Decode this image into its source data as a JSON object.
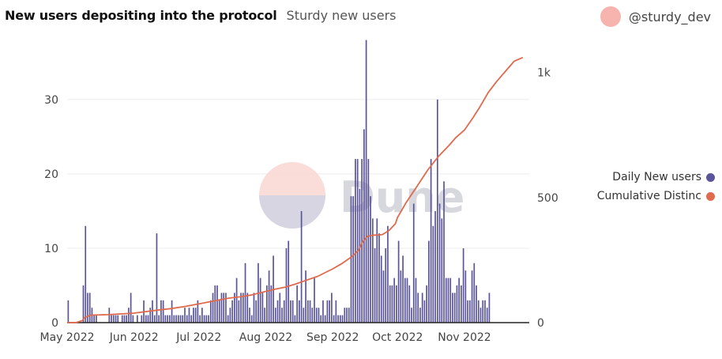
{
  "header": {
    "title": "New users depositing into the protocol",
    "subtitle": "Sturdy new users",
    "author": "@sturdy_dev"
  },
  "watermark": "Dune",
  "colors": {
    "bar": "#5a5599",
    "line": "#df6a4d",
    "avatar": "#f7b3ad",
    "grid": "#ececec"
  },
  "chart_data": {
    "type": "bar",
    "title": "New users depositing into the protocol",
    "subtitle": "Sturdy new users",
    "x": {
      "start": "2022-05-01",
      "end": "2022-12-01",
      "tick_labels": [
        "May 2022",
        "Jun 2022",
        "Jul 2022",
        "Aug 2022",
        "Sep 2022",
        "Oct 2022",
        "Nov 2022"
      ]
    },
    "y_left": {
      "min": 0,
      "max": 37,
      "ticks": [
        0,
        10,
        20,
        30
      ]
    },
    "y_right": {
      "min": 0,
      "max": 1100,
      "ticks": [
        0,
        500,
        1000
      ],
      "tick_labels": [
        "0",
        "500",
        "1k"
      ]
    },
    "legend": {
      "position": "right",
      "items": [
        {
          "label": "Daily New users",
          "color": "#5a5599"
        },
        {
          "label": "Cumulative Distinc",
          "color": "#df6a4d"
        }
      ]
    },
    "series": [
      {
        "name": "Daily New users",
        "type": "bar",
        "axis": "left",
        "values": [
          3,
          0,
          0,
          0,
          0,
          0,
          0,
          5,
          13,
          4,
          4,
          2,
          1,
          1,
          0,
          0,
          0,
          0,
          0,
          2,
          1,
          1,
          1,
          1,
          0,
          1,
          1,
          1,
          2,
          4,
          1,
          0,
          1,
          0,
          1,
          3,
          1,
          1,
          2,
          3,
          1,
          12,
          1,
          3,
          3,
          1,
          1,
          1,
          3,
          1,
          1,
          1,
          1,
          1,
          2,
          1,
          2,
          1,
          2,
          2,
          3,
          1,
          2,
          1,
          1,
          1,
          3,
          4,
          5,
          5,
          3,
          4,
          4,
          4,
          1,
          2,
          3,
          4,
          6,
          3,
          4,
          4,
          8,
          4,
          2,
          1,
          4,
          3,
          8,
          6,
          4,
          2,
          5,
          7,
          5,
          9,
          2,
          3,
          4,
          2,
          3,
          10,
          11,
          3,
          3,
          1,
          5,
          3,
          15,
          2,
          7,
          3,
          3,
          2,
          6,
          2,
          2,
          1,
          3,
          1,
          3,
          3,
          4,
          1,
          3,
          1,
          1,
          1,
          2,
          2,
          2,
          17,
          17,
          22,
          22,
          18,
          22,
          26,
          38,
          22,
          17,
          14,
          10,
          14,
          12,
          9,
          7,
          10,
          13,
          5,
          5,
          6,
          5,
          11,
          7,
          9,
          6,
          6,
          5,
          2,
          16,
          6,
          4,
          2,
          4,
          3,
          5,
          11,
          22,
          13,
          15,
          30,
          16,
          14,
          19,
          6,
          6,
          6,
          4,
          4,
          5,
          6,
          5,
          10,
          7,
          3,
          3,
          7,
          8,
          5,
          3,
          2,
          3,
          3,
          2,
          4
        ],
        "_bars": "one bar per day, 2022-05-01 .. 2022-11-28"
      },
      {
        "name": "Cumulative Distinct",
        "type": "line",
        "axis": "right",
        "x": [
          "2022-05-01",
          "2022-05-05",
          "2022-05-08",
          "2022-05-09",
          "2022-05-12",
          "2022-05-20",
          "2022-06-01",
          "2022-06-10",
          "2022-06-15",
          "2022-06-18",
          "2022-06-25",
          "2022-07-01",
          "2022-07-10",
          "2022-07-15",
          "2022-07-20",
          "2022-07-25",
          "2022-08-01",
          "2022-08-05",
          "2022-08-10",
          "2022-08-15",
          "2022-08-20",
          "2022-08-25",
          "2022-09-01",
          "2022-09-05",
          "2022-09-10",
          "2022-09-13",
          "2022-09-15",
          "2022-09-17",
          "2022-09-20",
          "2022-09-22",
          "2022-09-24",
          "2022-09-27",
          "2022-09-30",
          "2022-10-01",
          "2022-10-05",
          "2022-10-10",
          "2022-10-15",
          "2022-10-20",
          "2022-10-25",
          "2022-10-28",
          "2022-11-01",
          "2022-11-03",
          "2022-11-05",
          "2022-11-08",
          "2022-11-12",
          "2022-11-16",
          "2022-11-20",
          "2022-11-24",
          "2022-11-28"
        ],
        "values": [
          0,
          0,
          8,
          20,
          30,
          32,
          38,
          48,
          53,
          56,
          65,
          75,
          90,
          98,
          103,
          110,
          125,
          133,
          142,
          155,
          170,
          185,
          215,
          235,
          265,
          290,
          325,
          345,
          350,
          350,
          352,
          368,
          395,
          420,
          480,
          545,
          610,
          665,
          710,
          740,
          770,
          795,
          820,
          860,
          920,
          965,
          1005,
          1045,
          1060
        ]
      }
    ]
  }
}
